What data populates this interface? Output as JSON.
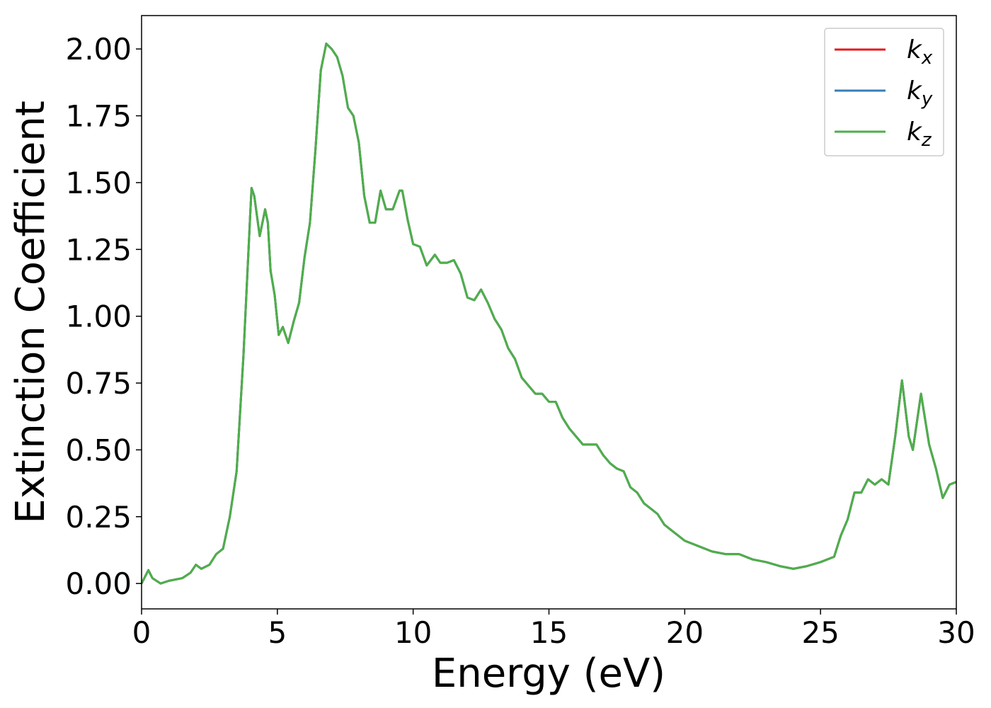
{
  "chart_data": {
    "type": "line",
    "xlabel": "Energy (eV)",
    "ylabel": "Extinction Coefficient",
    "x": [
      0,
      0.25,
      0.4,
      0.7,
      1.0,
      1.5,
      1.8,
      2.0,
      2.2,
      2.5,
      2.75,
      3.0,
      3.25,
      3.5,
      3.75,
      4.0,
      4.05,
      4.15,
      4.35,
      4.55,
      4.65,
      4.75,
      4.9,
      5.05,
      5.2,
      5.4,
      5.6,
      5.8,
      6.0,
      6.2,
      6.4,
      6.6,
      6.8,
      7.0,
      7.2,
      7.4,
      7.6,
      7.8,
      8.0,
      8.2,
      8.4,
      8.6,
      8.8,
      9.0,
      9.25,
      9.5,
      9.6,
      9.8,
      10.0,
      10.25,
      10.5,
      10.8,
      11.0,
      11.25,
      11.5,
      11.75,
      12.0,
      12.25,
      12.5,
      12.75,
      13.0,
      13.25,
      13.5,
      13.75,
      14.0,
      14.25,
      14.5,
      14.75,
      15.0,
      15.25,
      15.5,
      15.75,
      16.0,
      16.25,
      16.5,
      16.75,
      17.0,
      17.25,
      17.5,
      17.75,
      18.0,
      18.25,
      18.5,
      18.75,
      19.0,
      19.25,
      19.5,
      19.75,
      20.0,
      20.5,
      21.0,
      21.5,
      22.0,
      22.5,
      23.0,
      23.5,
      24.0,
      24.5,
      25.0,
      25.5,
      25.75,
      26.0,
      26.25,
      26.5,
      26.75,
      27.0,
      27.25,
      27.5,
      27.75,
      28.0,
      28.25,
      28.4,
      28.7,
      29.0,
      29.25,
      29.5,
      29.75,
      30.0
    ],
    "series": [
      {
        "name": "kx",
        "color": "#e41a1c",
        "values": [
          0.0,
          0.05,
          0.02,
          0.0,
          0.01,
          0.02,
          0.04,
          0.07,
          0.055,
          0.07,
          0.11,
          0.13,
          0.25,
          0.42,
          0.85,
          1.38,
          1.48,
          1.45,
          1.3,
          1.4,
          1.35,
          1.17,
          1.08,
          0.93,
          0.96,
          0.9,
          0.98,
          1.05,
          1.22,
          1.35,
          1.62,
          1.92,
          2.02,
          2.0,
          1.97,
          1.9,
          1.78,
          1.75,
          1.65,
          1.45,
          1.35,
          1.35,
          1.47,
          1.4,
          1.4,
          1.47,
          1.47,
          1.36,
          1.27,
          1.26,
          1.19,
          1.23,
          1.2,
          1.2,
          1.21,
          1.16,
          1.07,
          1.06,
          1.1,
          1.05,
          0.99,
          0.95,
          0.88,
          0.84,
          0.77,
          0.74,
          0.71,
          0.71,
          0.68,
          0.68,
          0.62,
          0.58,
          0.55,
          0.52,
          0.52,
          0.52,
          0.48,
          0.45,
          0.43,
          0.42,
          0.36,
          0.34,
          0.3,
          0.28,
          0.26,
          0.22,
          0.2,
          0.18,
          0.16,
          0.14,
          0.12,
          0.11,
          0.11,
          0.09,
          0.08,
          0.065,
          0.055,
          0.065,
          0.08,
          0.1,
          0.18,
          0.24,
          0.34,
          0.34,
          0.39,
          0.37,
          0.39,
          0.37,
          0.55,
          0.76,
          0.55,
          0.5,
          0.71,
          0.52,
          0.43,
          0.32,
          0.37,
          0.38
        ]
      },
      {
        "name": "ky",
        "color": "#377eb8",
        "values": [
          0.0,
          0.05,
          0.02,
          0.0,
          0.01,
          0.02,
          0.04,
          0.07,
          0.055,
          0.07,
          0.11,
          0.13,
          0.25,
          0.42,
          0.85,
          1.38,
          1.48,
          1.45,
          1.3,
          1.4,
          1.35,
          1.17,
          1.08,
          0.93,
          0.96,
          0.9,
          0.98,
          1.05,
          1.22,
          1.35,
          1.62,
          1.92,
          2.02,
          2.0,
          1.97,
          1.9,
          1.78,
          1.75,
          1.65,
          1.45,
          1.35,
          1.35,
          1.47,
          1.4,
          1.4,
          1.47,
          1.47,
          1.36,
          1.27,
          1.26,
          1.19,
          1.23,
          1.2,
          1.2,
          1.21,
          1.16,
          1.07,
          1.06,
          1.1,
          1.05,
          0.99,
          0.95,
          0.88,
          0.84,
          0.77,
          0.74,
          0.71,
          0.71,
          0.68,
          0.68,
          0.62,
          0.58,
          0.55,
          0.52,
          0.52,
          0.52,
          0.48,
          0.45,
          0.43,
          0.42,
          0.36,
          0.34,
          0.3,
          0.28,
          0.26,
          0.22,
          0.2,
          0.18,
          0.16,
          0.14,
          0.12,
          0.11,
          0.11,
          0.09,
          0.08,
          0.065,
          0.055,
          0.065,
          0.08,
          0.1,
          0.18,
          0.24,
          0.34,
          0.34,
          0.39,
          0.37,
          0.39,
          0.37,
          0.55,
          0.76,
          0.55,
          0.5,
          0.71,
          0.52,
          0.43,
          0.32,
          0.37,
          0.38
        ]
      },
      {
        "name": "kz",
        "color": "#4daf4a",
        "values": [
          0.0,
          0.05,
          0.02,
          0.0,
          0.01,
          0.02,
          0.04,
          0.07,
          0.055,
          0.07,
          0.11,
          0.13,
          0.25,
          0.42,
          0.85,
          1.38,
          1.48,
          1.45,
          1.3,
          1.4,
          1.35,
          1.17,
          1.08,
          0.93,
          0.96,
          0.9,
          0.98,
          1.05,
          1.22,
          1.35,
          1.62,
          1.92,
          2.02,
          2.0,
          1.97,
          1.9,
          1.78,
          1.75,
          1.65,
          1.45,
          1.35,
          1.35,
          1.47,
          1.4,
          1.4,
          1.47,
          1.47,
          1.36,
          1.27,
          1.26,
          1.19,
          1.23,
          1.2,
          1.2,
          1.21,
          1.16,
          1.07,
          1.06,
          1.1,
          1.05,
          0.99,
          0.95,
          0.88,
          0.84,
          0.77,
          0.74,
          0.71,
          0.71,
          0.68,
          0.68,
          0.62,
          0.58,
          0.55,
          0.52,
          0.52,
          0.52,
          0.48,
          0.45,
          0.43,
          0.42,
          0.36,
          0.34,
          0.3,
          0.28,
          0.26,
          0.22,
          0.2,
          0.18,
          0.16,
          0.14,
          0.12,
          0.11,
          0.11,
          0.09,
          0.08,
          0.065,
          0.055,
          0.065,
          0.08,
          0.1,
          0.18,
          0.24,
          0.34,
          0.34,
          0.39,
          0.37,
          0.39,
          0.37,
          0.55,
          0.76,
          0.55,
          0.5,
          0.71,
          0.52,
          0.43,
          0.32,
          0.37,
          0.38
        ]
      }
    ],
    "xlim": [
      0,
      30
    ],
    "xticks": [
      0,
      5,
      10,
      15,
      20,
      25,
      30
    ],
    "ylim": [
      -0.095,
      2.125
    ],
    "yticks": [
      {
        "value": 0,
        "label": "0.00"
      },
      {
        "value": 0.25,
        "label": "0.25"
      },
      {
        "value": 0.5,
        "label": "0.50"
      },
      {
        "value": 0.75,
        "label": "0.75"
      },
      {
        "value": 1,
        "label": "1.00"
      },
      {
        "value": 1.25,
        "label": "1.25"
      },
      {
        "value": 1.5,
        "label": "1.50"
      },
      {
        "value": 1.75,
        "label": "1.75"
      },
      {
        "value": 2,
        "label": "2.00"
      }
    ],
    "grid": false,
    "legend": "upper right"
  }
}
